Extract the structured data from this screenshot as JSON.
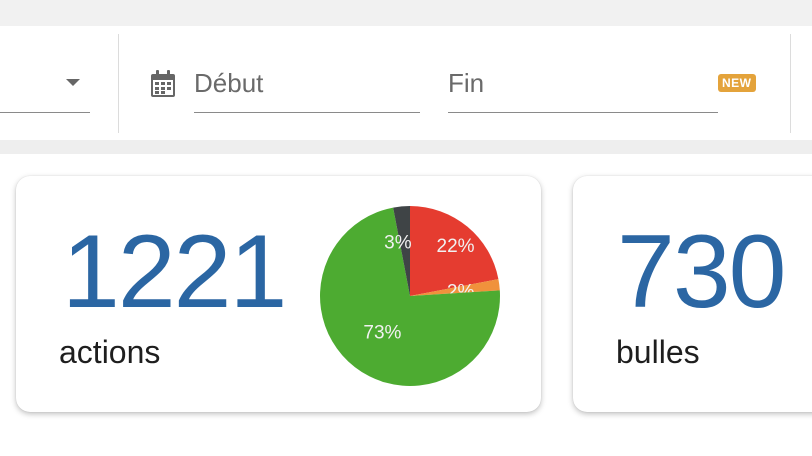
{
  "filters": {
    "start_label": "Début",
    "end_label": "Fin",
    "badge": "NEW",
    "icons": {
      "select": "chevron-down-icon",
      "calendar": "calendar-icon"
    }
  },
  "stats": [
    {
      "value": "1221",
      "label": "actions"
    },
    {
      "value": "730",
      "label": "bulles"
    }
  ],
  "chart_data": {
    "type": "pie",
    "slices": [
      {
        "value": 22,
        "label": "22%",
        "color": "#e53c30"
      },
      {
        "value": 2,
        "label": "2%",
        "color": "#f0923c"
      },
      {
        "value": 73,
        "label": "73%",
        "color": "#4dab31"
      },
      {
        "value": 3,
        "label": "3%",
        "color": "#3f4446"
      }
    ]
  },
  "colors": {
    "accent": "#2b66a3",
    "badge": "#e4a33b"
  }
}
